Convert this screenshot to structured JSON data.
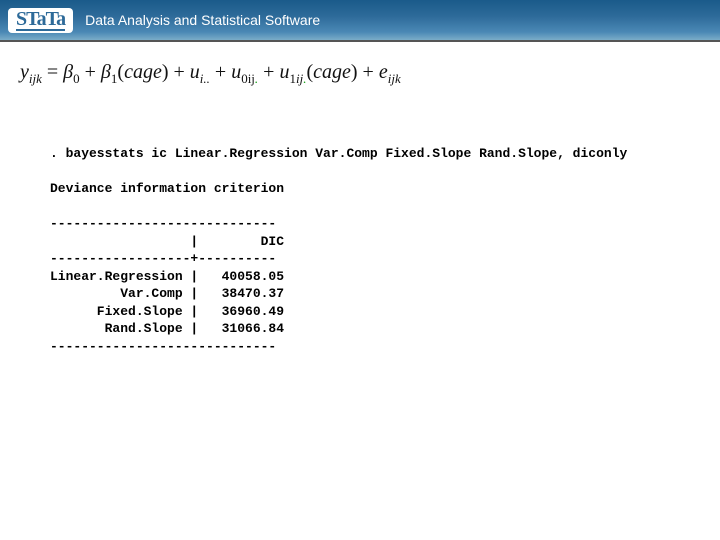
{
  "header": {
    "logo": "STaTa",
    "subtitle": "Data Analysis and Statistical Software"
  },
  "equation": {
    "lhs_var": "y",
    "lhs_sub": "ijk",
    "b0": "β",
    "b0_sub": "0",
    "b1": "β",
    "b1_sub": "1",
    "cage": "cage",
    "u_i": "u",
    "u_i_sub": "i..",
    "u0": "u",
    "u0_sub1": "0ij",
    "u0_sub2": ".",
    "u1": "u",
    "u1_sub_pre": "1",
    "u1_sub1": "ij",
    "u1_sub2": ".",
    "err": "e",
    "err_sub": "ijk"
  },
  "output": {
    "command": ". bayesstats ic Linear.Regression Var.Comp Fixed.Slope Rand.Slope, diconly",
    "title": "Deviance information criterion",
    "rule1": "-----------------------------",
    "headrow": "                  |        DIC",
    "rule2": "------------------+----------",
    "row1": "Linear.Regression |   40058.05",
    "row2": "         Var.Comp |   38470.37",
    "row3": "      Fixed.Slope |   36960.49",
    "row4": "       Rand.Slope |   31066.84",
    "rule3": "-----------------------------"
  }
}
